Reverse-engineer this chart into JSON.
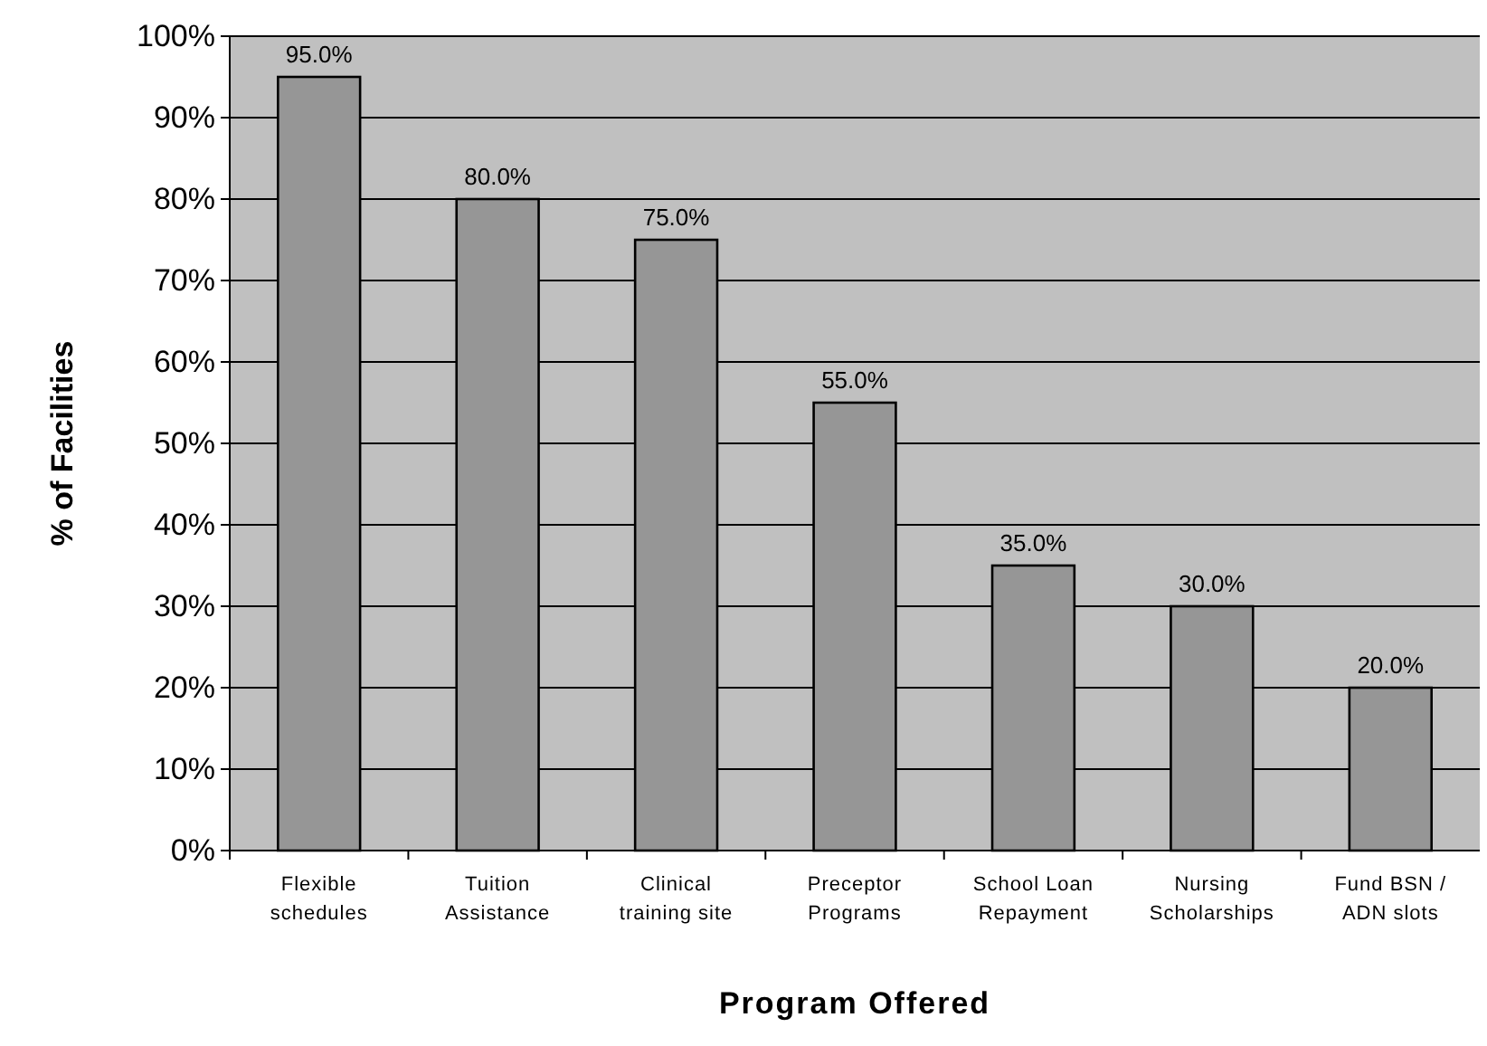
{
  "chart_data": {
    "type": "bar",
    "xlabel": "Program Offered",
    "ylabel": "% of Facilities",
    "categories": [
      "Flexible schedules",
      "Tuition Assistance",
      "Clinical training site",
      "Preceptor Programs",
      "School Loan Repayment",
      "Nursing Scholarships",
      "Fund BSN / ADN slots"
    ],
    "values": [
      95,
      80,
      75,
      55,
      35,
      30,
      20
    ],
    "value_labels": [
      "95.0%",
      "80.0%",
      "75.0%",
      "55.0%",
      "35.0%",
      "30.0%",
      "20.0%"
    ],
    "color": "#969696",
    "ylim": [
      0,
      100
    ],
    "yticks": [
      {
        "value": 0,
        "label": "0%"
      },
      {
        "value": 10,
        "label": "10%"
      },
      {
        "value": 20,
        "label": "20%"
      },
      {
        "value": 30,
        "label": "30%"
      },
      {
        "value": 40,
        "label": "40%"
      },
      {
        "value": 50,
        "label": "50%"
      },
      {
        "value": 60,
        "label": "60%"
      },
      {
        "value": 70,
        "label": "70%"
      },
      {
        "value": 80,
        "label": "80%"
      },
      {
        "value": 90,
        "label": "90%"
      },
      {
        "value": 100,
        "label": "100%"
      }
    ],
    "grid": "y"
  }
}
